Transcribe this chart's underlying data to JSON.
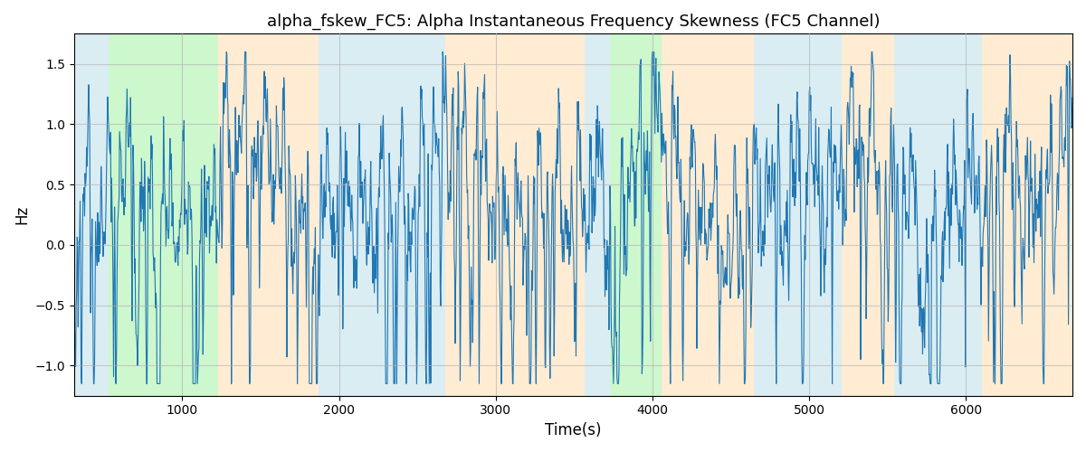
{
  "title": "alpha_fskew_FC5: Alpha Instantaneous Frequency Skewness (FC5 Channel)",
  "xlabel": "Time(s)",
  "ylabel": "Hz",
  "xlim": [
    310,
    6680
  ],
  "ylim": [
    -1.25,
    1.75
  ],
  "yticks": [
    -1.0,
    -0.5,
    0.0,
    0.5,
    1.0,
    1.5
  ],
  "xticks": [
    1000,
    2000,
    3000,
    4000,
    5000,
    6000
  ],
  "line_color": "#1f77b4",
  "line_width": 0.8,
  "bg_regions": [
    {
      "xmin": 310,
      "xmax": 530,
      "color": "#add8e6",
      "alpha": 0.45
    },
    {
      "xmin": 530,
      "xmax": 1230,
      "color": "#90ee90",
      "alpha": 0.45
    },
    {
      "xmin": 1230,
      "xmax": 1870,
      "color": "#ffd59e",
      "alpha": 0.45
    },
    {
      "xmin": 1870,
      "xmax": 2530,
      "color": "#add8e6",
      "alpha": 0.45
    },
    {
      "xmin": 2530,
      "xmax": 2680,
      "color": "#add8e6",
      "alpha": 0.45
    },
    {
      "xmin": 2680,
      "xmax": 3570,
      "color": "#ffd59e",
      "alpha": 0.45
    },
    {
      "xmin": 3570,
      "xmax": 3730,
      "color": "#add8e6",
      "alpha": 0.45
    },
    {
      "xmin": 3730,
      "xmax": 3900,
      "color": "#90ee90",
      "alpha": 0.45
    },
    {
      "xmin": 3900,
      "xmax": 4060,
      "color": "#90ee90",
      "alpha": 0.45
    },
    {
      "xmin": 4060,
      "xmax": 4430,
      "color": "#ffd59e",
      "alpha": 0.45
    },
    {
      "xmin": 4430,
      "xmax": 4650,
      "color": "#ffd59e",
      "alpha": 0.45
    },
    {
      "xmin": 4650,
      "xmax": 5210,
      "color": "#add8e6",
      "alpha": 0.45
    },
    {
      "xmin": 5210,
      "xmax": 5540,
      "color": "#ffd59e",
      "alpha": 0.45
    },
    {
      "xmin": 5540,
      "xmax": 6100,
      "color": "#add8e6",
      "alpha": 0.45
    },
    {
      "xmin": 6100,
      "xmax": 6680,
      "color": "#ffd59e",
      "alpha": 0.45
    }
  ],
  "figsize": [
    12.0,
    5.0
  ],
  "dpi": 100,
  "seed": 42,
  "grid_color": "#b0b0b0",
  "grid_alpha": 0.6,
  "grid_linewidth": 0.8
}
